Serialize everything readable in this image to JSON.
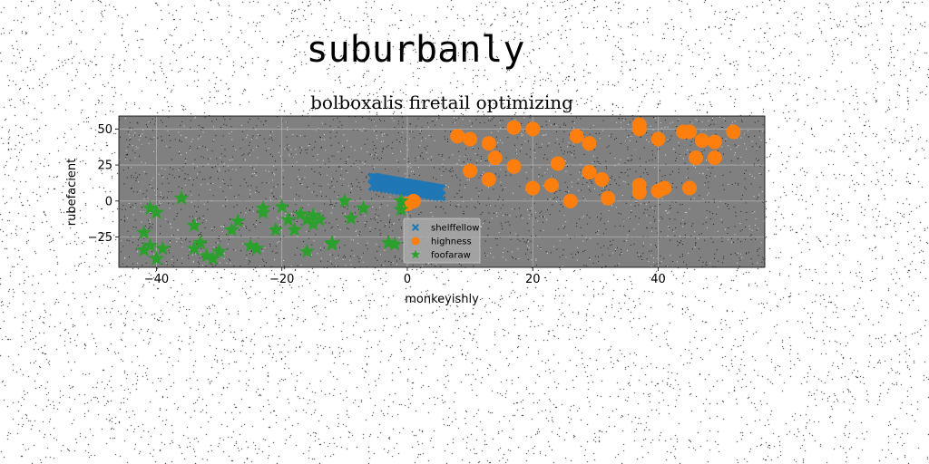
{
  "page": {
    "suptitle": "suburbanly"
  },
  "chart_data": {
    "type": "scatter",
    "title": "bolboxalis firetail optimizing",
    "xlabel": "monkeyishly",
    "ylabel": "rubefacient",
    "xlim": [
      -46,
      57
    ],
    "ylim": [
      -46,
      59
    ],
    "xticks": [
      -40,
      -20,
      0,
      20,
      40
    ],
    "xtick_labels": [
      "−40",
      "−20",
      "0",
      "20",
      "40"
    ],
    "yticks": [
      -25,
      0,
      25,
      50
    ],
    "ytick_labels": [
      "−25",
      "0",
      "25",
      "50"
    ],
    "grid": true,
    "plot_background": "#808080",
    "legend_position": "lower-center",
    "series": [
      {
        "name": "shelffellow",
        "marker": "X",
        "color": "#1f77b4",
        "x": [
          -5.5,
          -5.2,
          -4.9,
          -4.6,
          -4.3,
          -4.0,
          -3.7,
          -3.4,
          -3.1,
          -2.8,
          -2.5,
          -2.2,
          -1.9,
          -1.6,
          -1.3,
          -1.0,
          -0.7,
          -0.4,
          -0.1,
          0.2,
          0.5,
          0.8,
          1.1,
          1.4,
          1.7,
          2.0,
          2.3,
          2.6,
          2.9,
          3.2,
          3.5,
          3.8,
          4.1,
          4.4,
          4.7,
          5.0,
          5.3,
          -5.4,
          -4.8,
          -4.2,
          -3.6,
          -3.0,
          -2.4,
          -1.8,
          -1.2,
          -0.6,
          0.0,
          0.6,
          1.2,
          1.8,
          2.4,
          3.0,
          3.6,
          4.2,
          4.8,
          5.3
        ],
        "y": [
          16,
          15.8,
          15.6,
          15.4,
          15.1,
          14.9,
          14.7,
          14.5,
          14.2,
          14.0,
          13.8,
          13.6,
          13.3,
          13.1,
          12.9,
          12.7,
          12.4,
          12.2,
          12.0,
          11.8,
          11.5,
          11.3,
          11.1,
          10.9,
          10.6,
          10.4,
          10.2,
          10.0,
          9.7,
          9.5,
          9.3,
          9.1,
          8.8,
          8.6,
          8.4,
          8.2,
          8.0,
          10.5,
          10.1,
          9.7,
          9.3,
          8.9,
          8.5,
          8.1,
          7.7,
          7.3,
          6.9,
          6.5,
          6.1,
          5.7,
          5.3,
          4.9,
          4.5,
          4.1,
          3.7,
          3.4
        ]
      },
      {
        "name": "highness",
        "marker": "o",
        "color": "#ff7f0e",
        "x": [
          8,
          10,
          10,
          13,
          13,
          14,
          17,
          17,
          20,
          20,
          23,
          24,
          26,
          27,
          29,
          29,
          31,
          32,
          37,
          37,
          37,
          37,
          40,
          40,
          41,
          44,
          45,
          45,
          46,
          47,
          49,
          49,
          52,
          0,
          1
        ],
        "y": [
          45,
          43,
          21,
          40,
          15,
          30,
          51,
          24,
          50,
          9,
          11,
          26,
          0,
          45,
          40,
          20,
          15,
          2,
          53,
          50,
          11,
          6,
          43,
          7,
          9,
          48,
          48,
          9,
          30,
          42,
          41,
          30,
          48,
          -2,
          0
        ]
      },
      {
        "name": "foofaraw",
        "marker": "*",
        "color": "#2ca02c",
        "x": [
          -41,
          -40,
          -42,
          -41,
          -39,
          -42,
          -40,
          -36,
          -34,
          -33,
          -34,
          -31,
          -32,
          -30,
          -28,
          -27,
          -25,
          -24,
          -23,
          -23,
          -21,
          -20,
          -19,
          -18,
          -17,
          -16,
          -16,
          -15,
          -15,
          -14,
          -12,
          -12,
          -10,
          -9,
          -7,
          -3,
          -2,
          -1,
          -1
        ],
        "y": [
          -5,
          -8,
          -22,
          -31,
          -33,
          -34,
          -40,
          2,
          -17,
          -29,
          -33,
          -40,
          -38,
          -35,
          -20,
          -14,
          -31,
          -33,
          -5,
          -8,
          -20,
          -4,
          -13,
          -20,
          -9,
          -13,
          -35,
          -10,
          -16,
          -13,
          -29,
          -30,
          0,
          -12,
          -5,
          -29,
          -30,
          -6,
          0
        ]
      }
    ]
  }
}
